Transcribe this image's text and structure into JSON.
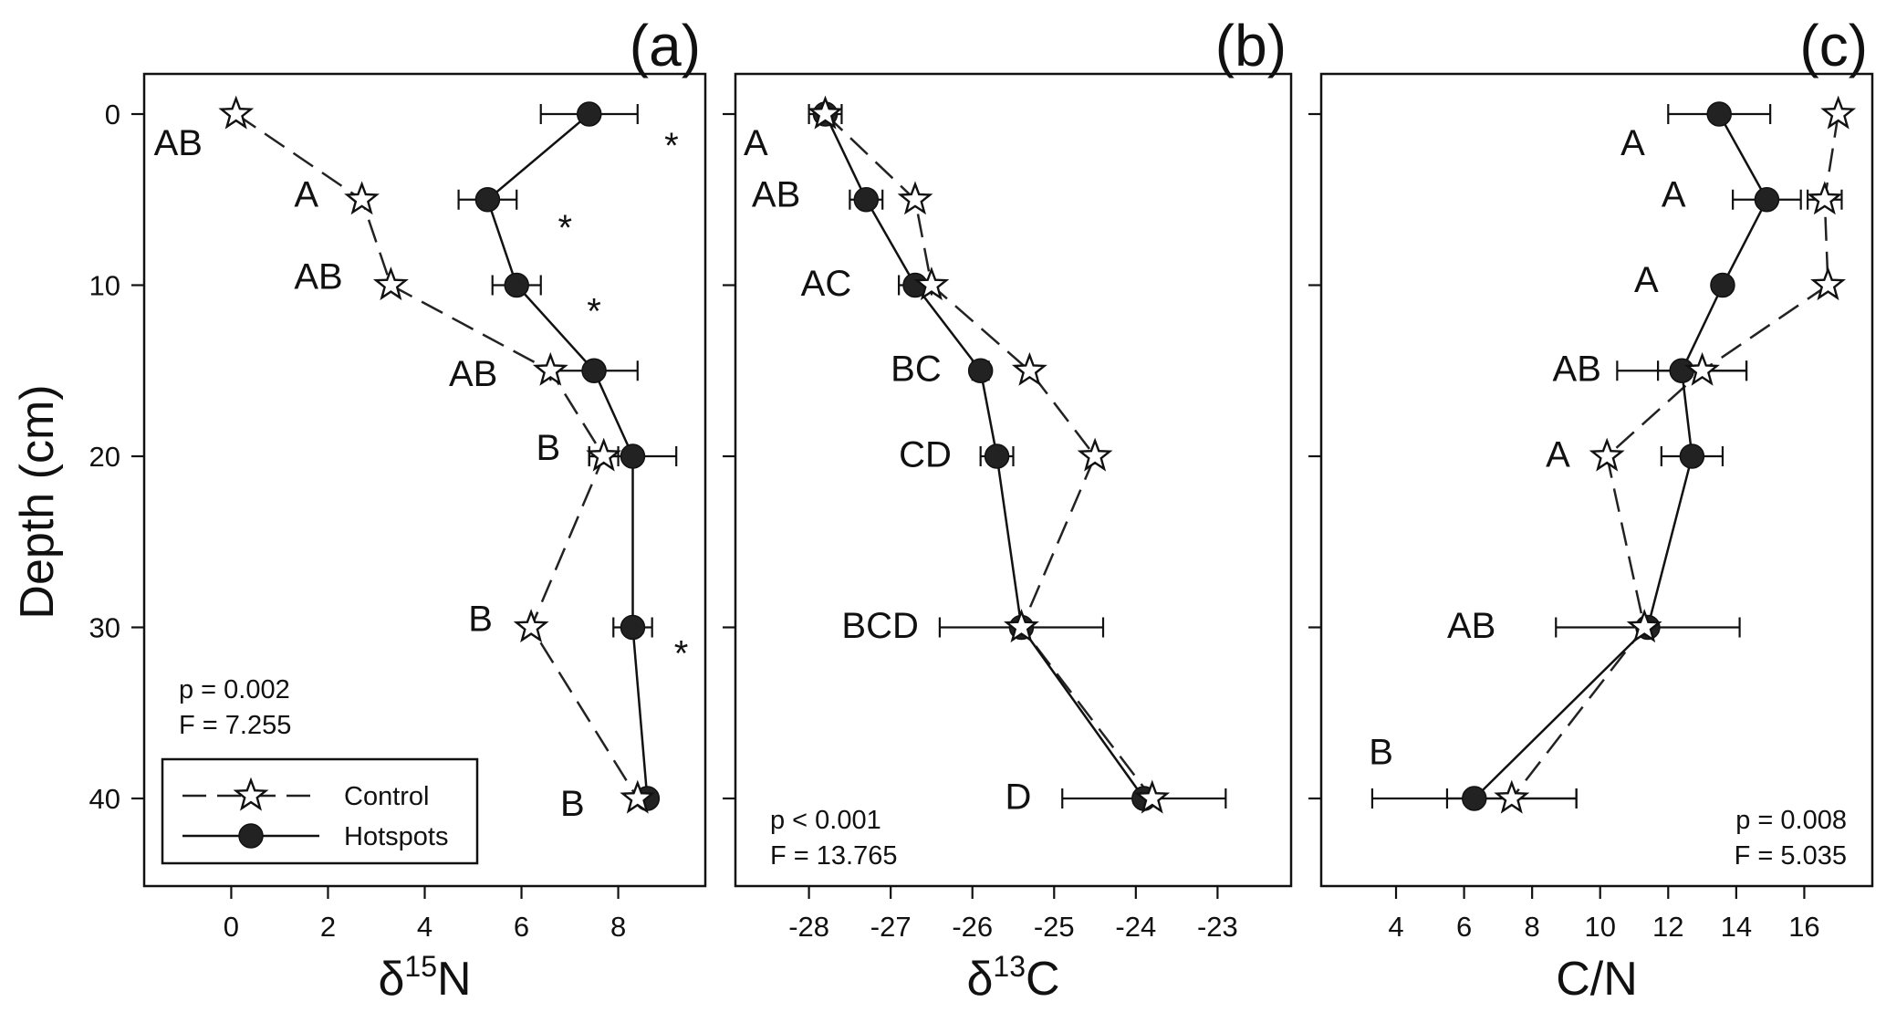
{
  "chart_data": [
    {
      "type": "line",
      "panel_label": "(a)",
      "xlabel": "δ15N",
      "xlabel_base": "δ",
      "xlabel_sup": "15",
      "xlabel_elem": "N",
      "ylabel": "Depth (cm)",
      "xlim": [
        -1.8,
        9.8
      ],
      "xticks": [
        0,
        2,
        4,
        6,
        8
      ],
      "ylim": [
        0,
        45
      ],
      "yticks": [
        0,
        10,
        20,
        30,
        40
      ],
      "y": [
        0,
        5,
        10,
        15,
        20,
        30,
        40
      ],
      "series": [
        {
          "name": "Control",
          "marker": "star",
          "line": "dashed",
          "values": [
            0.1,
            2.7,
            3.3,
            6.6,
            7.7,
            6.2,
            8.4
          ],
          "err": [
            null,
            null,
            null,
            null,
            0.3,
            null,
            null
          ]
        },
        {
          "name": "Hotspots",
          "marker": "circle",
          "line": "solid",
          "values": [
            7.4,
            5.3,
            5.9,
            7.5,
            8.3,
            8.3,
            8.6
          ],
          "err": [
            1.0,
            0.6,
            0.5,
            0.9,
            0.9,
            0.4,
            null
          ]
        }
      ],
      "letters": [
        {
          "text": "AB",
          "x": -1.6,
          "y": 2.4
        },
        {
          "text": "A",
          "x": 1.3,
          "y": 5.4
        },
        {
          "text": "AB",
          "x": 1.3,
          "y": 10.2
        },
        {
          "text": "AB",
          "x": 4.5,
          "y": 15.9
        },
        {
          "text": "B",
          "x": 6.3,
          "y": 20.2
        },
        {
          "text": "B",
          "x": 4.9,
          "y": 30.2
        },
        {
          "text": "B",
          "x": 6.8,
          "y": 41.0
        }
      ],
      "asterisks": [
        {
          "text": "*",
          "x": 9.1,
          "y": 1.8
        },
        {
          "text": "*",
          "x": 6.9,
          "y": 6.6
        },
        {
          "text": "*",
          "x": 7.5,
          "y": 11.5
        },
        {
          "text": "*",
          "x": 9.3,
          "y": 31.5
        }
      ],
      "stats": [
        "p = 0.002",
        "F = 7.255"
      ],
      "stats_corner": "bottom-left",
      "legend": {
        "placement": "bottom-left",
        "entries": [
          "Control",
          "Hotspots"
        ]
      }
    },
    {
      "type": "line",
      "panel_label": "(b)",
      "xlabel": "δ13C",
      "xlabel_base": "δ",
      "xlabel_sup": "13",
      "xlabel_elem": "C",
      "ylabel": "",
      "xlim": [
        -28.9,
        -22.1
      ],
      "xticks": [
        -28,
        -27,
        -26,
        -25,
        -24,
        -23
      ],
      "ylim": [
        0,
        45
      ],
      "yticks": [
        0,
        10,
        20,
        30,
        40
      ],
      "y": [
        0,
        5,
        10,
        15,
        20,
        30,
        40
      ],
      "series": [
        {
          "name": "Control",
          "marker": "star",
          "line": "dashed",
          "values": [
            -27.8,
            -26.7,
            -26.5,
            -25.3,
            -24.5,
            -25.4,
            -23.8
          ],
          "err": [
            null,
            null,
            null,
            null,
            null,
            null,
            null
          ]
        },
        {
          "name": "Hotspots",
          "marker": "circle",
          "line": "solid",
          "values": [
            -27.8,
            -27.3,
            -26.7,
            -25.9,
            -25.7,
            -25.4,
            -23.9
          ],
          "err": [
            0.2,
            0.2,
            0.2,
            0.1,
            0.2,
            1.0,
            1.0
          ]
        }
      ],
      "letters": [
        {
          "text": "A",
          "x": -28.8,
          "y": 2.4
        },
        {
          "text": "AB",
          "x": -28.7,
          "y": 5.4
        },
        {
          "text": "AC",
          "x": -28.1,
          "y": 10.6
        },
        {
          "text": "BC",
          "x": -27.0,
          "y": 15.6
        },
        {
          "text": "CD",
          "x": -26.9,
          "y": 20.6
        },
        {
          "text": "BCD",
          "x": -27.6,
          "y": 30.6
        },
        {
          "text": "D",
          "x": -25.6,
          "y": 40.6
        }
      ],
      "asterisks": [],
      "stats": [
        "p < 0.001",
        "F = 13.765"
      ],
      "stats_corner": "bottom-left"
    },
    {
      "type": "line",
      "panel_label": "(c)",
      "xlabel": "C/N",
      "ylabel": "",
      "xlim": [
        1.8,
        18.0
      ],
      "xticks": [
        4,
        6,
        8,
        10,
        12,
        14,
        16
      ],
      "ylim": [
        0,
        45
      ],
      "yticks": [
        0,
        10,
        20,
        30,
        40
      ],
      "y": [
        0,
        5,
        10,
        15,
        20,
        30,
        40
      ],
      "series": [
        {
          "name": "Control",
          "marker": "star",
          "line": "dashed",
          "values": [
            17.0,
            16.6,
            16.7,
            13.0,
            10.2,
            11.3,
            7.4
          ],
          "err": [
            null,
            0.5,
            null,
            1.3,
            null,
            null,
            1.9
          ]
        },
        {
          "name": "Hotspots",
          "marker": "circle",
          "line": "solid",
          "values": [
            13.5,
            14.9,
            13.6,
            12.4,
            12.7,
            11.4,
            6.3
          ],
          "err": [
            1.5,
            1.0,
            null,
            1.9,
            0.9,
            2.7,
            3.0
          ]
        }
      ],
      "letters": [
        {
          "text": "A",
          "x": 10.6,
          "y": 2.4
        },
        {
          "text": "A",
          "x": 11.8,
          "y": 5.4
        },
        {
          "text": "A",
          "x": 11.0,
          "y": 10.4
        },
        {
          "text": "AB",
          "x": 8.6,
          "y": 15.6
        },
        {
          "text": "A",
          "x": 8.4,
          "y": 20.6
        },
        {
          "text": "AB",
          "x": 5.5,
          "y": 30.6
        },
        {
          "text": "B",
          "x": 3.2,
          "y": 38.0
        }
      ],
      "asterisks": [],
      "stats": [
        "p = 0.008",
        "F = 5.035"
      ],
      "stats_corner": "bottom-right"
    }
  ]
}
